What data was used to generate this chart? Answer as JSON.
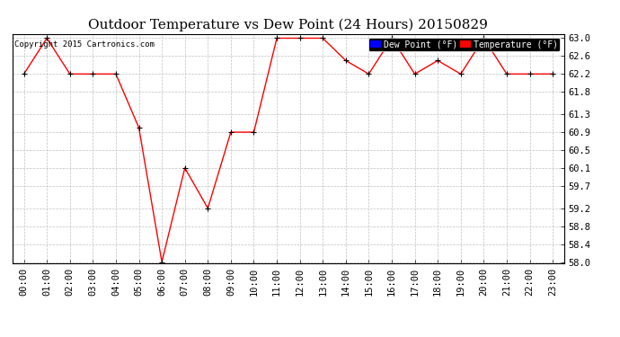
{
  "title": "Outdoor Temperature vs Dew Point (24 Hours) 20150829",
  "copyright": "Copyright 2015 Cartronics.com",
  "x_labels": [
    "00:00",
    "01:00",
    "02:00",
    "03:00",
    "04:00",
    "05:00",
    "06:00",
    "07:00",
    "08:00",
    "09:00",
    "10:00",
    "11:00",
    "12:00",
    "13:00",
    "14:00",
    "15:00",
    "16:00",
    "17:00",
    "18:00",
    "19:00",
    "20:00",
    "21:00",
    "22:00",
    "23:00"
  ],
  "temperature": [
    62.2,
    63.0,
    62.2,
    62.2,
    62.2,
    61.0,
    58.0,
    60.1,
    59.2,
    60.9,
    60.9,
    63.0,
    63.0,
    63.0,
    62.5,
    62.2,
    63.0,
    62.2,
    62.5,
    62.2,
    63.0,
    62.2,
    62.2,
    62.2
  ],
  "ylim_min": 58.0,
  "ylim_max": 63.0,
  "yticks": [
    58.0,
    58.4,
    58.8,
    59.2,
    59.7,
    60.1,
    60.5,
    60.9,
    61.3,
    61.8,
    62.2,
    62.6,
    63.0
  ],
  "temp_color": "#ff0000",
  "dew_color": "#0000ff",
  "background_color": "#ffffff",
  "grid_color": "#c0c0c0",
  "legend_dew_label": "Dew Point (°F)",
  "legend_temp_label": "Temperature (°F)",
  "title_fontsize": 11,
  "tick_fontsize": 7.5,
  "copyright_fontsize": 6.5
}
